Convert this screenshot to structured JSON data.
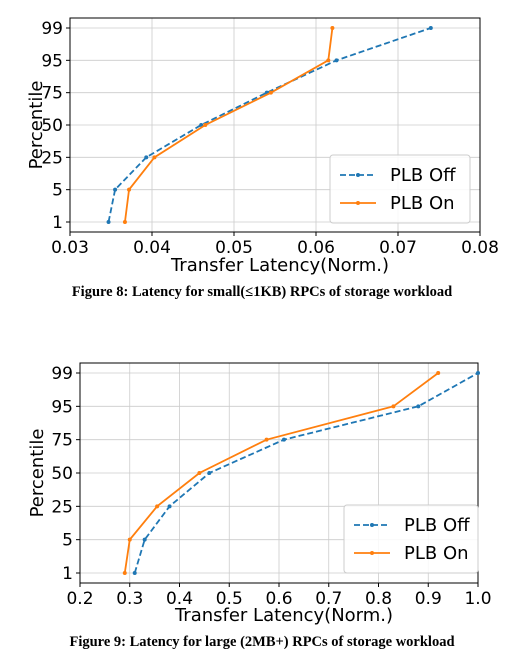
{
  "colors": {
    "off": "#1f77b4",
    "on": "#ff7f0e",
    "axis": "#000000",
    "grid": "#cccccc"
  },
  "chart_data": [
    {
      "type": "line",
      "title": "",
      "caption": "Figure 8: Latency for small(≤1KB) RPCs of storage workload",
      "xlabel": "Transfer Latency(Norm.)",
      "ylabel": "Percentile",
      "xlim": [
        0.03,
        0.08
      ],
      "xticks": [
        "0.03",
        "0.04",
        "0.05",
        "0.06",
        "0.07",
        "0.08"
      ],
      "xtick_values": [
        0.03,
        0.04,
        0.05,
        0.06,
        0.07,
        0.08
      ],
      "y_categories": [
        "1",
        "5",
        "25",
        "50",
        "75",
        "95",
        "99"
      ],
      "grid": true,
      "legend_position": "lower-right",
      "series": [
        {
          "name": "PLB Off",
          "style": "dashed",
          "color": "#1f77b4",
          "x": [
            0.0347,
            0.0355,
            0.0393,
            0.046,
            0.054,
            0.0625,
            0.074
          ],
          "y": [
            "1",
            "5",
            "25",
            "50",
            "75",
            "95",
            "99"
          ]
        },
        {
          "name": "PLB On",
          "style": "solid",
          "color": "#ff7f0e",
          "x": [
            0.0367,
            0.0372,
            0.0403,
            0.0465,
            0.0545,
            0.0615,
            0.062
          ],
          "y": [
            "1",
            "5",
            "25",
            "50",
            "75",
            "95",
            "99"
          ]
        }
      ]
    },
    {
      "type": "line",
      "title": "",
      "caption": "Figure 9: Latency for large (2MB+) RPCs of storage workload",
      "xlabel": "Transfer Latency(Norm.)",
      "ylabel": "Percentile",
      "xlim": [
        0.2,
        1.0
      ],
      "xticks": [
        "0.2",
        "0.3",
        "0.4",
        "0.5",
        "0.6",
        "0.7",
        "0.8",
        "0.9",
        "1.0"
      ],
      "xtick_values": [
        0.2,
        0.3,
        0.4,
        0.5,
        0.6,
        0.7,
        0.8,
        0.9,
        1.0
      ],
      "y_categories": [
        "1",
        "5",
        "25",
        "50",
        "75",
        "95",
        "99"
      ],
      "grid": true,
      "legend_position": "lower-right",
      "series": [
        {
          "name": "PLB Off",
          "style": "dashed",
          "color": "#1f77b4",
          "x": [
            0.31,
            0.33,
            0.38,
            0.46,
            0.61,
            0.88,
            1.0
          ],
          "y": [
            "1",
            "5",
            "25",
            "50",
            "75",
            "95",
            "99"
          ]
        },
        {
          "name": "PLB On",
          "style": "solid",
          "color": "#ff7f0e",
          "x": [
            0.29,
            0.3,
            0.355,
            0.44,
            0.575,
            0.83,
            0.92
          ],
          "y": [
            "1",
            "5",
            "25",
            "50",
            "75",
            "95",
            "99"
          ]
        }
      ]
    }
  ]
}
